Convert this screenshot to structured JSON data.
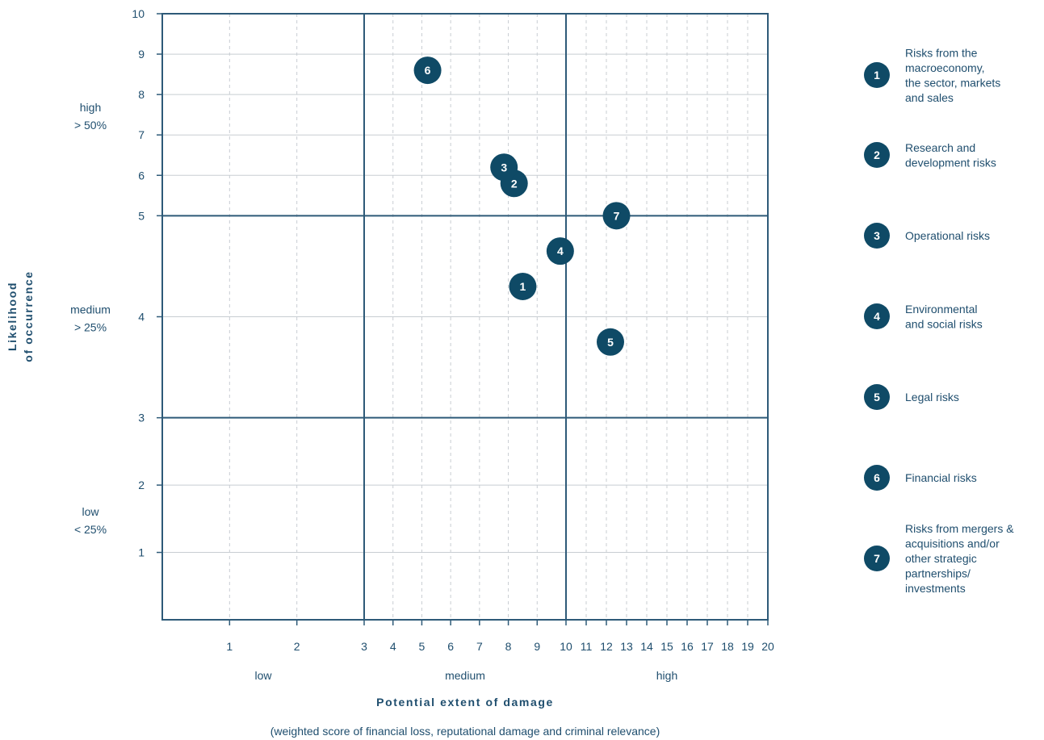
{
  "colors": {
    "frame": "#2e5a78",
    "grid_major": "#c8cdd2",
    "grid_dashed": "#c8cdd2",
    "marker": "#0f4a66",
    "text": "#1f4e6e"
  },
  "chart_data": {
    "type": "scatter",
    "x_axis": {
      "title": "Potential extent of damage",
      "subtitle": "(weighted score of financial loss, reputational damage and criminal relevance)",
      "ticks": [
        1,
        2,
        3,
        4,
        5,
        6,
        7,
        8,
        9,
        10,
        11,
        12,
        13,
        14,
        15,
        16,
        17,
        18,
        19,
        20
      ],
      "bands": [
        {
          "label": "low",
          "range": [
            0,
            3
          ]
        },
        {
          "label": "medium",
          "range": [
            3,
            10
          ]
        },
        {
          "label": "high",
          "range": [
            10,
            20
          ]
        }
      ]
    },
    "y_axis": {
      "title_line1": "Likelihood",
      "title_line2": "of occurrence",
      "ticks": [
        1,
        2,
        3,
        4,
        5,
        6,
        7,
        8,
        9,
        10
      ],
      "bands": [
        {
          "label_line1": "low",
          "label_line2": "< 25%",
          "range": [
            0,
            3
          ]
        },
        {
          "label_line1": "medium",
          "label_line2": "> 25%",
          "range": [
            3,
            5
          ]
        },
        {
          "label_line1": "high",
          "label_line2": "> 50%",
          "range": [
            5,
            10
          ]
        }
      ]
    },
    "points": [
      {
        "id": "1",
        "x": 8.5,
        "y": 4.3
      },
      {
        "id": "2",
        "x": 8.2,
        "y": 5.8
      },
      {
        "id": "3",
        "x": 7.85,
        "y": 6.2
      },
      {
        "id": "4",
        "x": 9.8,
        "y": 4.65
      },
      {
        "id": "5",
        "x": 12.2,
        "y": 3.75
      },
      {
        "id": "6",
        "x": 5.2,
        "y": 8.6
      },
      {
        "id": "7",
        "x": 12.5,
        "y": 5.0
      }
    ],
    "legend": [
      {
        "id": "1",
        "lines": [
          "Risks from the",
          "macroeconomy,",
          "the sector, markets",
          "and sales"
        ]
      },
      {
        "id": "2",
        "lines": [
          "Research and",
          "development risks"
        ]
      },
      {
        "id": "3",
        "lines": [
          "Operational risks"
        ]
      },
      {
        "id": "4",
        "lines": [
          "Environmental",
          "and social risks"
        ]
      },
      {
        "id": "5",
        "lines": [
          "Legal risks"
        ]
      },
      {
        "id": "6",
        "lines": [
          "Financial risks"
        ]
      },
      {
        "id": "7",
        "lines": [
          "Risks from mergers &",
          "acquisitions and/or",
          "other strategic",
          "partnerships/",
          "investments"
        ]
      }
    ]
  }
}
